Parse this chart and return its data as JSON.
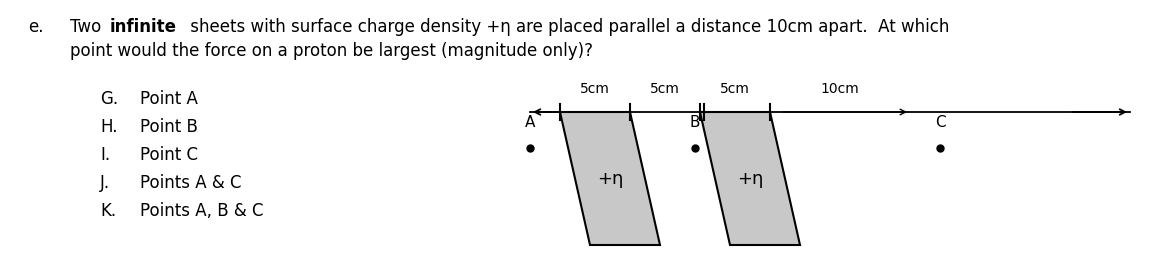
{
  "bg_color": "#ffffff",
  "text_color": "#000000",
  "sheet_color": "#c8c8c8",
  "sheet_edge_color": "#000000",
  "options_letters": [
    "G.",
    "H.",
    "I.",
    "J.",
    "K."
  ],
  "options_text": [
    "Point A",
    "Point B",
    "Point C",
    "Points A & C",
    "Points A, B & C"
  ],
  "dim_labels": [
    "5cm",
    "5cm",
    "5cm",
    "10cm"
  ],
  "charge_labels": [
    "+η",
    "+η"
  ],
  "point_labels": [
    "A",
    "B",
    "C"
  ]
}
